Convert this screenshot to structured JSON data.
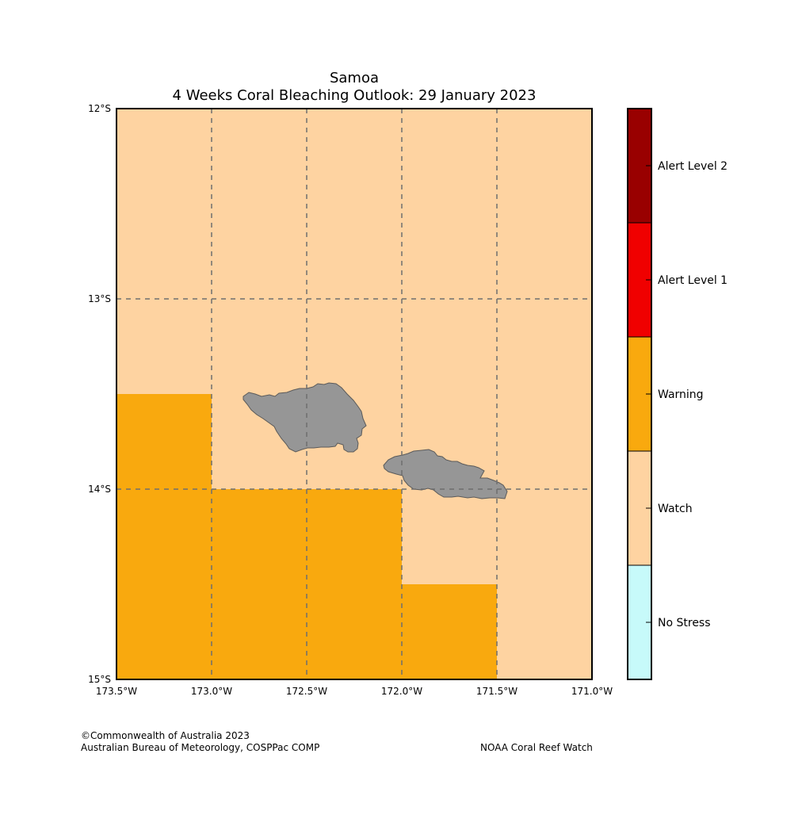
{
  "title": {
    "line1": "Samoa",
    "line2": "4 Weeks Coral Bleaching Outlook: 29 January 2023"
  },
  "axes": {
    "lon_ticks": [
      "173.5°W",
      "173.0°W",
      "172.5°W",
      "172.0°W",
      "171.5°W",
      "171.0°W"
    ],
    "lat_ticks": [
      "12°S",
      "13°S",
      "14°S",
      "15°S"
    ]
  },
  "legend": {
    "levels": [
      {
        "label": "Alert Level 2",
        "color": "#990000"
      },
      {
        "label": "Alert Level 1",
        "color": "#f00000"
      },
      {
        "label": "Warning",
        "color": "#f9a90e"
      },
      {
        "label": "Watch",
        "color": "#fed3a1"
      },
      {
        "label": "No Stress",
        "color": "#c7fafa"
      }
    ]
  },
  "map": {
    "extent": {
      "lon": [
        -173.5,
        -171.0
      ],
      "lat": [
        -15.0,
        -12.0
      ]
    },
    "background_level": "Watch",
    "warning_areas": [
      {
        "lon": [
          -173.5,
          -173.0
        ],
        "lat": [
          -15.0,
          -13.5
        ]
      },
      {
        "lon": [
          -173.0,
          -172.0
        ],
        "lat": [
          -15.0,
          -14.0
        ]
      },
      {
        "lon": [
          -172.0,
          -171.5
        ],
        "lat": [
          -15.0,
          -14.5
        ]
      }
    ],
    "land_color": "#969696",
    "islands": [
      "Savai'i",
      "Upolu"
    ]
  },
  "footer": {
    "left_line1": "©Commonwealth of Australia 2023",
    "left_line2": "Australian Bureau of Meteorology, COSPPac COMP",
    "right": "NOAA Coral Reef Watch"
  }
}
